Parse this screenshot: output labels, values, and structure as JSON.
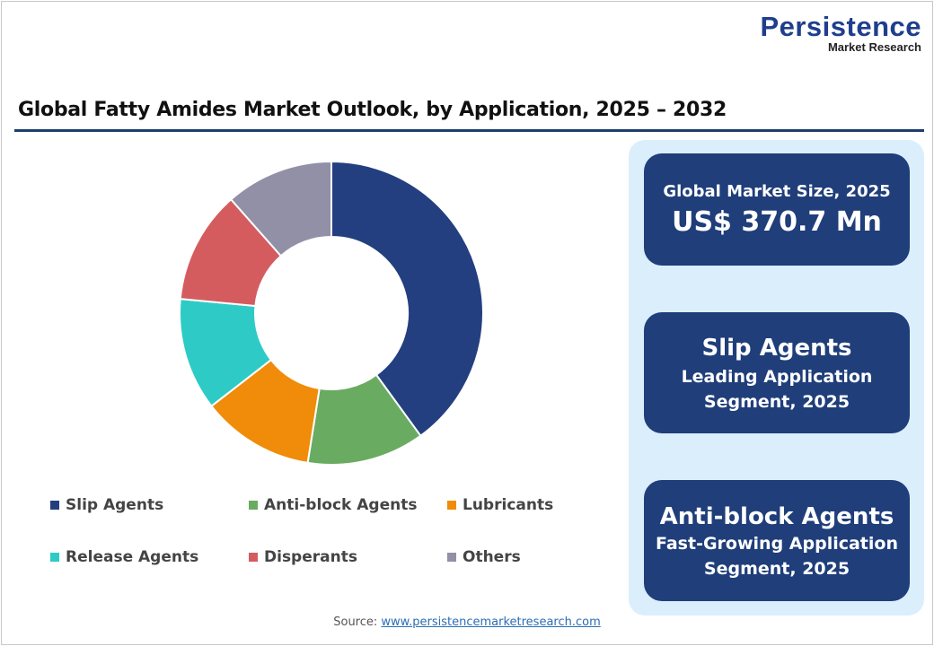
{
  "logo": {
    "main": "Persistence",
    "sub": "Market Research"
  },
  "chart_data": {
    "type": "pie",
    "donut": true,
    "title": "Global Fatty Amides Market Outlook, by Application, 2025 – 2032",
    "categories": [
      "Slip Agents",
      "Anti-block Agents",
      "Lubricants",
      "Release Agents",
      "Disperants",
      "Others"
    ],
    "values": [
      40,
      12.5,
      12,
      12,
      12,
      11.5
    ],
    "colors": [
      "#233f80",
      "#6aab62",
      "#f08c0a",
      "#2ecbc6",
      "#d45c5f",
      "#9190a6"
    ],
    "legend_position": "bottom"
  },
  "cards": [
    {
      "line1": "Global Market Size, 2025",
      "line2": "US$ 370.7 Mn"
    },
    {
      "line1": "Slip Agents",
      "line2": "Leading Application",
      "line3": "Segment, 2025"
    },
    {
      "line1": "Anti-block Agents",
      "line2": "Fast-Growing Application",
      "line3": "Segment, 2025"
    }
  ],
  "source": {
    "label": "Source:",
    "link": "www.persistencemarketresearch.com"
  }
}
